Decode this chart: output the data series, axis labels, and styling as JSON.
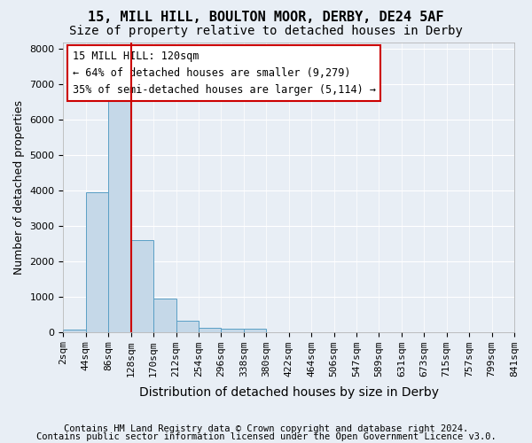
{
  "title1": "15, MILL HILL, BOULTON MOOR, DERBY, DE24 5AF",
  "title2": "Size of property relative to detached houses in Derby",
  "xlabel": "Distribution of detached houses by size in Derby",
  "ylabel": "Number of detached properties",
  "footer1": "Contains HM Land Registry data © Crown copyright and database right 2024.",
  "footer2": "Contains public sector information licensed under the Open Government Licence v3.0.",
  "annotation_line1": "15 MILL HILL: 120sqm",
  "annotation_line2": "← 64% of detached houses are smaller (9,279)",
  "annotation_line3": "35% of semi-detached houses are larger (5,114) →",
  "bar_values": [
    75,
    3950,
    6550,
    2600,
    950,
    310,
    120,
    100,
    80,
    0,
    0,
    0,
    0,
    0,
    0,
    0,
    0,
    0,
    0,
    0
  ],
  "categories": [
    "2sqm",
    "44sqm",
    "86sqm",
    "128sqm",
    "170sqm",
    "212sqm",
    "254sqm",
    "296sqm",
    "338sqm",
    "380sqm",
    "422sqm",
    "464sqm",
    "506sqm",
    "547sqm",
    "589sqm",
    "631sqm",
    "673sqm",
    "715sqm",
    "757sqm",
    "799sqm",
    "841sqm"
  ],
  "bar_color": "#c5d8e8",
  "bar_edge_color": "#5a9fc5",
  "vline_x_idx": 3,
  "vline_color": "#cc0000",
  "ylim": [
    0,
    8200
  ],
  "yticks": [
    0,
    1000,
    2000,
    3000,
    4000,
    5000,
    6000,
    7000,
    8000
  ],
  "background_color": "#e8eef5",
  "grid_color": "#ffffff",
  "annotation_box_color": "#ffffff",
  "annotation_box_edge": "#cc0000",
  "title1_fontsize": 11,
  "title2_fontsize": 10,
  "xlabel_fontsize": 10,
  "ylabel_fontsize": 9,
  "tick_fontsize": 8,
  "annotation_fontsize": 8.5,
  "footer_fontsize": 7.5
}
